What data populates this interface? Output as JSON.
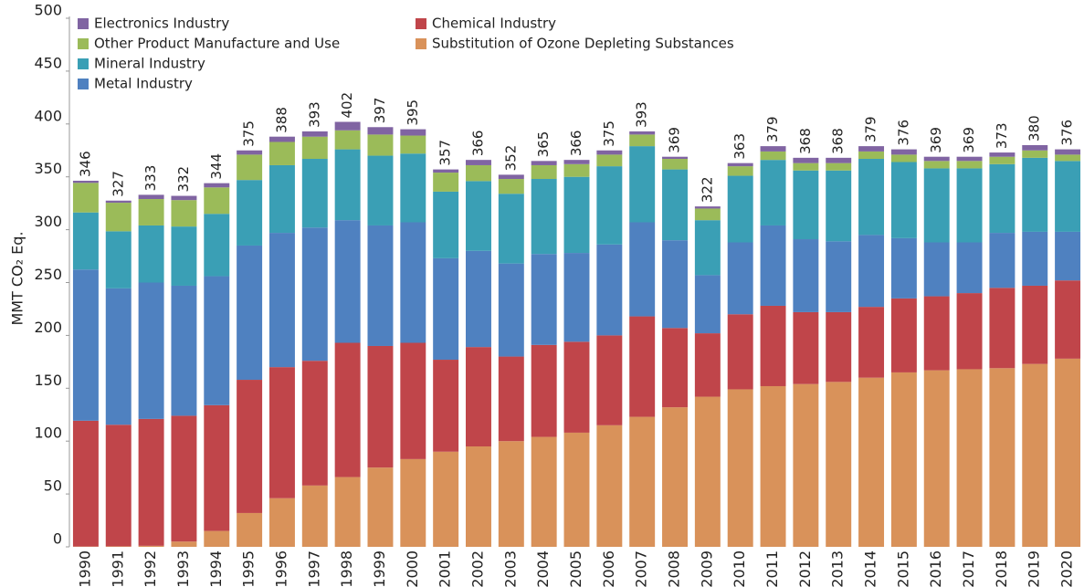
{
  "chart_data": {
    "type": "stacked_bar",
    "y_label": "MMT CO₂ Eq.",
    "categories": [
      "1990",
      "1991",
      "1992",
      "1993",
      "1994",
      "1995",
      "1996",
      "1997",
      "1998",
      "1999",
      "2000",
      "2001",
      "2002",
      "2003",
      "2004",
      "2005",
      "2006",
      "2007",
      "2008",
      "2009",
      "2010",
      "2011",
      "2012",
      "2013",
      "2014",
      "2015",
      "2016",
      "2017",
      "2018",
      "2019",
      "2020"
    ],
    "ylim": [
      0,
      500
    ],
    "yticks": [
      0,
      50,
      100,
      150,
      200,
      250,
      300,
      350,
      400,
      450,
      500
    ],
    "series": [
      {
        "name": "Substitution of Ozone Depleting Substances",
        "color": "#d9925a",
        "values": [
          0.3,
          0.5,
          1,
          5,
          15,
          32,
          46,
          58,
          66,
          75,
          83,
          90,
          95,
          100,
          104,
          108,
          115,
          123,
          132,
          142,
          149,
          152,
          154,
          156,
          160,
          165,
          167,
          168,
          169,
          173,
          178
        ]
      },
      {
        "name": "Chemical Industry",
        "color": "#c0454a",
        "values": [
          119,
          115,
          120,
          119,
          119,
          126,
          124,
          118,
          127,
          115,
          110,
          87,
          94,
          80,
          87,
          86,
          85,
          95,
          75,
          60,
          71,
          76,
          68,
          66,
          67,
          70,
          70,
          72,
          76,
          74,
          74
        ]
      },
      {
        "name": "Metal Industry",
        "color": "#4f81c0",
        "values": [
          143,
          129,
          129,
          123,
          122,
          127,
          127,
          126,
          116,
          114,
          114,
          96,
          91,
          88,
          86,
          84,
          86,
          89,
          83,
          55,
          68,
          76,
          69,
          67,
          68,
          57,
          51,
          48,
          52,
          51,
          46
        ]
      },
      {
        "name": "Mineral Industry",
        "color": "#3a9fb5",
        "values": [
          54,
          54,
          54,
          56,
          59,
          62,
          64,
          65,
          67,
          66,
          65,
          63,
          66,
          66,
          71,
          72,
          74,
          72,
          67,
          52,
          63,
          62,
          65,
          67,
          72,
          72,
          70,
          70,
          65,
          70,
          67
        ]
      },
      {
        "name": "Other Product Manufacture and Use",
        "color": "#9bbb59",
        "values": [
          28,
          27,
          25,
          25,
          25,
          24,
          22,
          21,
          18,
          20,
          17,
          18,
          15,
          14,
          13,
          12,
          11,
          11,
          10,
          11,
          9,
          8,
          7,
          7,
          7,
          7,
          7,
          7,
          7,
          7,
          6
        ]
      },
      {
        "name": "Electronics Industry",
        "color": "#8064a2",
        "values": [
          2,
          2,
          4,
          4,
          4,
          4,
          5,
          5,
          8,
          7,
          6,
          3,
          5,
          4,
          4,
          4,
          4,
          3,
          2,
          2,
          3,
          5,
          5,
          5,
          5,
          5,
          4,
          4,
          4,
          5,
          5
        ]
      }
    ],
    "totals": [
      346,
      327,
      333,
      332,
      344,
      375,
      388,
      393,
      402,
      397,
      395,
      357,
      366,
      352,
      365,
      366,
      375,
      393,
      369,
      322,
      363,
      379,
      368,
      368,
      379,
      376,
      369,
      369,
      373,
      380,
      376
    ]
  }
}
